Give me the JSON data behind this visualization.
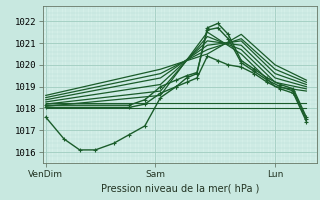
{
  "background_color": "#c8e8e0",
  "plot_bg_color": "#d4efe8",
  "grid_major_color": "#a0ccc0",
  "grid_minor_color": "#b8ddd6",
  "line_color": "#1a5c2a",
  "title": "Pression niveau de la mer( hPa )",
  "ylim": [
    1015.5,
    1022.7
  ],
  "yticks": [
    1016,
    1017,
    1018,
    1019,
    1020,
    1021,
    1022
  ],
  "xtick_labels": [
    "VenDim",
    "Sam",
    "Lun"
  ],
  "xtick_positions": [
    0.0,
    0.42,
    0.88
  ],
  "xlim": [
    -0.01,
    1.04
  ],
  "lines": [
    {
      "x": [
        0.0,
        0.07,
        0.13,
        0.19,
        0.26,
        0.32,
        0.38,
        0.44,
        0.5,
        0.54,
        0.58,
        0.62,
        0.66,
        0.7,
        0.75,
        0.8,
        0.85,
        0.9,
        0.95,
        1.0
      ],
      "y": [
        1017.6,
        1016.6,
        1016.1,
        1016.1,
        1016.4,
        1016.8,
        1017.2,
        1018.5,
        1019.0,
        1019.4,
        1019.6,
        1021.7,
        1021.9,
        1021.4,
        1020.2,
        1019.8,
        1019.4,
        1019.1,
        1018.9,
        1017.6
      ],
      "marker": true,
      "lw": 1.0
    },
    {
      "x": [
        0.0,
        0.44,
        0.62,
        0.75,
        0.88,
        1.0
      ],
      "y": [
        1018.1,
        1018.6,
        1021.5,
        1020.5,
        1019.0,
        1018.8
      ],
      "marker": false,
      "lw": 0.9
    },
    {
      "x": [
        0.0,
        0.44,
        0.62,
        0.75,
        0.88,
        1.0
      ],
      "y": [
        1018.2,
        1018.8,
        1021.3,
        1020.7,
        1019.2,
        1018.9
      ],
      "marker": false,
      "lw": 0.9
    },
    {
      "x": [
        0.0,
        0.44,
        0.62,
        0.75,
        0.88,
        1.0
      ],
      "y": [
        1018.3,
        1019.1,
        1021.1,
        1020.9,
        1019.4,
        1019.0
      ],
      "marker": false,
      "lw": 0.9
    },
    {
      "x": [
        0.0,
        0.44,
        0.62,
        0.75,
        0.88,
        1.0
      ],
      "y": [
        1018.4,
        1019.4,
        1020.9,
        1021.1,
        1019.6,
        1019.1
      ],
      "marker": false,
      "lw": 0.9
    },
    {
      "x": [
        0.0,
        0.44,
        0.62,
        0.75,
        0.88,
        1.0
      ],
      "y": [
        1018.5,
        1019.6,
        1020.7,
        1021.2,
        1019.8,
        1019.2
      ],
      "marker": false,
      "lw": 0.9
    },
    {
      "x": [
        0.0,
        0.44,
        0.62,
        0.75,
        0.88,
        1.0
      ],
      "y": [
        1018.6,
        1019.8,
        1020.5,
        1021.4,
        1020.0,
        1019.3
      ],
      "marker": false,
      "lw": 0.9
    },
    {
      "x": [
        0.0,
        0.32,
        0.38,
        0.44,
        0.5,
        0.54,
        0.58,
        0.62,
        0.66,
        0.7,
        0.75,
        0.8,
        0.85,
        0.9,
        0.95,
        1.0
      ],
      "y": [
        1018.15,
        1018.15,
        1018.4,
        1019.0,
        1019.3,
        1019.5,
        1019.65,
        1021.6,
        1021.7,
        1021.2,
        1020.1,
        1019.7,
        1019.3,
        1019.0,
        1018.8,
        1017.5
      ],
      "marker": true,
      "lw": 1.0
    },
    {
      "x": [
        0.0,
        0.32,
        0.38,
        0.44,
        0.5,
        0.54,
        0.58,
        0.62,
        0.66,
        0.7,
        0.75,
        0.8,
        0.85,
        0.9,
        0.95,
        1.0
      ],
      "y": [
        1018.05,
        1018.05,
        1018.2,
        1018.7,
        1019.0,
        1019.2,
        1019.4,
        1020.4,
        1020.2,
        1020.0,
        1019.9,
        1019.6,
        1019.2,
        1018.9,
        1018.7,
        1017.4
      ],
      "marker": true,
      "lw": 1.0
    },
    {
      "x": [
        0.0,
        1.0
      ],
      "y": [
        1018.0,
        1018.0
      ],
      "marker": false,
      "lw": 0.8
    },
    {
      "x": [
        0.0,
        1.0
      ],
      "y": [
        1018.25,
        1018.25
      ],
      "marker": false,
      "lw": 0.8
    }
  ]
}
